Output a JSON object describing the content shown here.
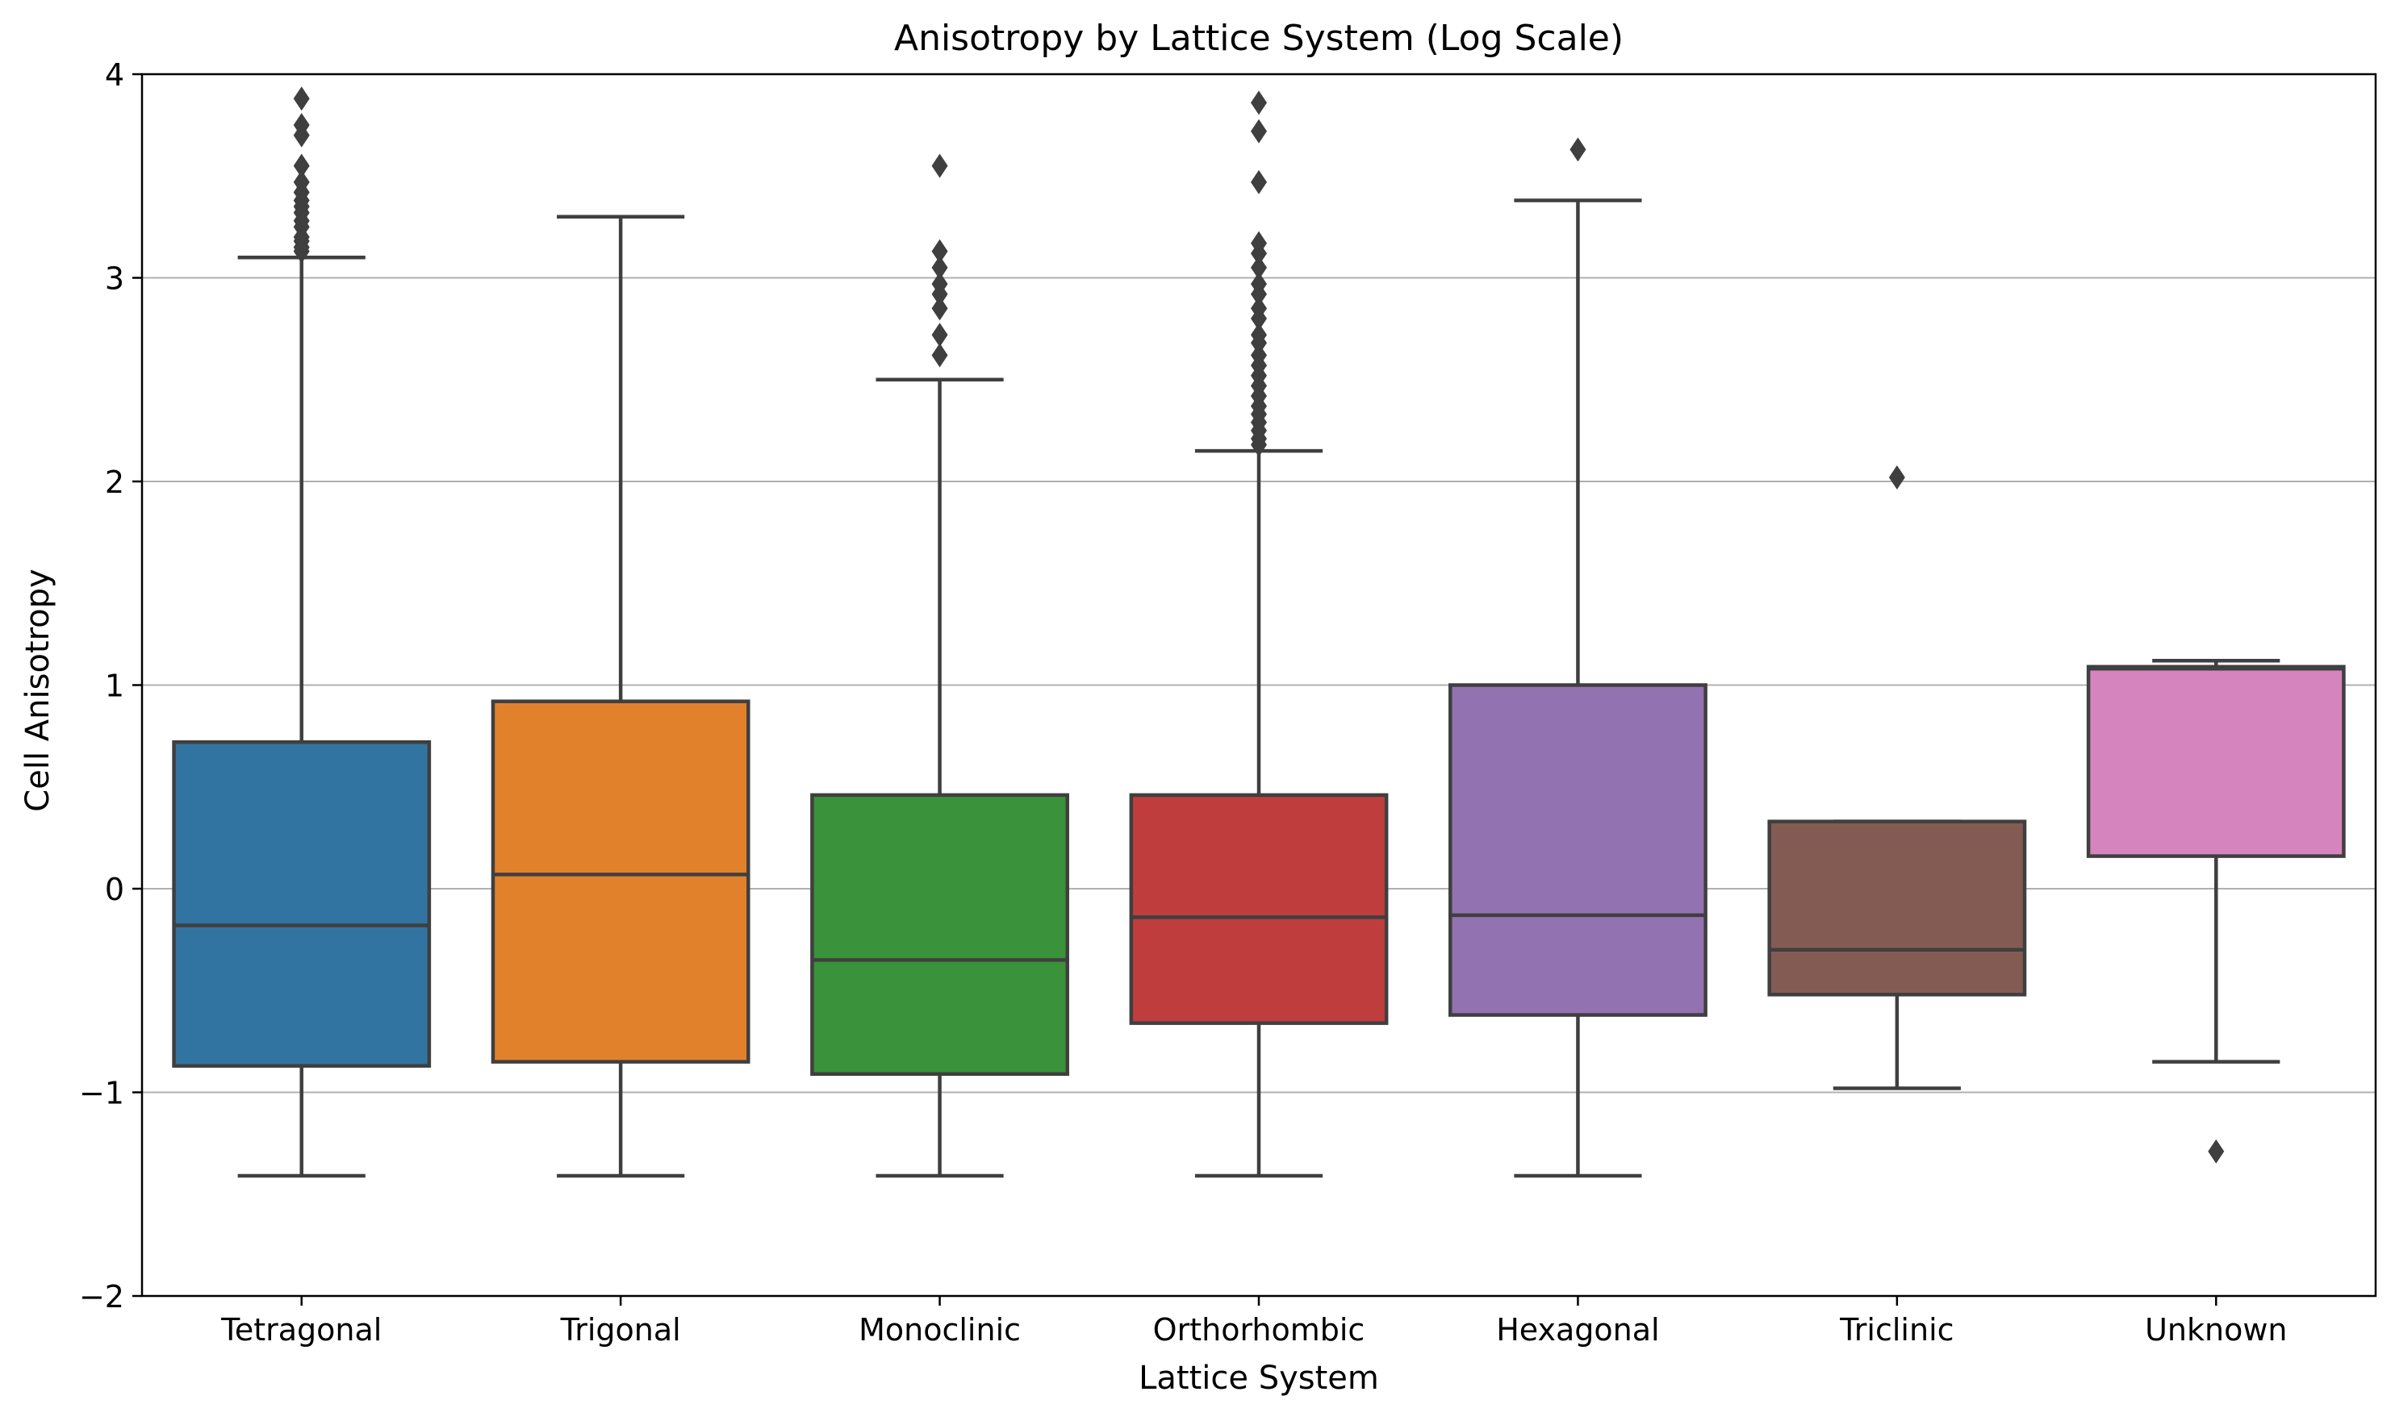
{
  "chart_data": {
    "type": "box",
    "title": "Anisotropy by Lattice System (Log Scale)",
    "xlabel": "Lattice System",
    "ylabel": "Cell Anisotropy",
    "ylim": [
      -2,
      4
    ],
    "yticks": [
      -2,
      -1,
      0,
      1,
      2,
      3,
      4
    ],
    "ytick_labels": [
      "−2",
      "−1",
      "0",
      "1",
      "2",
      "3",
      "4"
    ],
    "grid": "horizontal",
    "categories": [
      "Tetragonal",
      "Trigonal",
      "Monoclinic",
      "Orthorhombic",
      "Hexagonal",
      "Triclinic",
      "Unknown"
    ],
    "series": [
      {
        "category": "Tetragonal",
        "whisker_low": -1.41,
        "q1": -0.87,
        "median": -0.18,
        "q3": 0.72,
        "whisker_high": 3.1,
        "color": "#3274a1",
        "outliers": [
          3.88,
          3.75,
          3.7,
          3.55,
          3.47,
          3.42,
          3.38,
          3.35,
          3.32,
          3.28,
          3.25,
          3.2,
          3.18,
          3.15,
          3.13
        ]
      },
      {
        "category": "Trigonal",
        "whisker_low": -1.41,
        "q1": -0.85,
        "median": 0.07,
        "q3": 0.92,
        "whisker_high": 3.3,
        "color": "#e1812c",
        "outliers": []
      },
      {
        "category": "Monoclinic",
        "whisker_low": -1.41,
        "q1": -0.91,
        "median": -0.35,
        "q3": 0.46,
        "whisker_high": 2.5,
        "color": "#3a923a",
        "outliers": [
          3.55,
          3.13,
          3.05,
          2.97,
          2.92,
          2.85,
          2.72,
          2.62
        ]
      },
      {
        "category": "Orthorhombic",
        "whisker_low": -1.41,
        "q1": -0.66,
        "median": -0.14,
        "q3": 0.46,
        "whisker_high": 2.15,
        "color": "#c03d3e",
        "outliers": [
          3.86,
          3.72,
          3.47,
          3.17,
          3.12,
          3.05,
          2.97,
          2.92,
          2.85,
          2.8,
          2.72,
          2.68,
          2.62,
          2.57,
          2.52,
          2.47,
          2.42,
          2.37,
          2.33,
          2.29,
          2.25,
          2.21,
          2.18
        ]
      },
      {
        "category": "Hexagonal",
        "whisker_low": -1.41,
        "q1": -0.62,
        "median": -0.13,
        "q3": 1.0,
        "whisker_high": 3.38,
        "color": "#9372b2",
        "outliers": [
          3.63
        ]
      },
      {
        "category": "Triclinic",
        "whisker_low": -0.98,
        "q1": -0.52,
        "median": -0.3,
        "q3": 0.33,
        "whisker_high": 0.33,
        "color": "#845b53",
        "outliers": [
          2.02
        ]
      },
      {
        "category": "Unknown",
        "whisker_low": -0.85,
        "q1": 0.16,
        "median": 1.08,
        "q3": 1.09,
        "whisker_high": 1.12,
        "color": "#d684bd",
        "outliers": [
          -1.29
        ]
      }
    ]
  }
}
